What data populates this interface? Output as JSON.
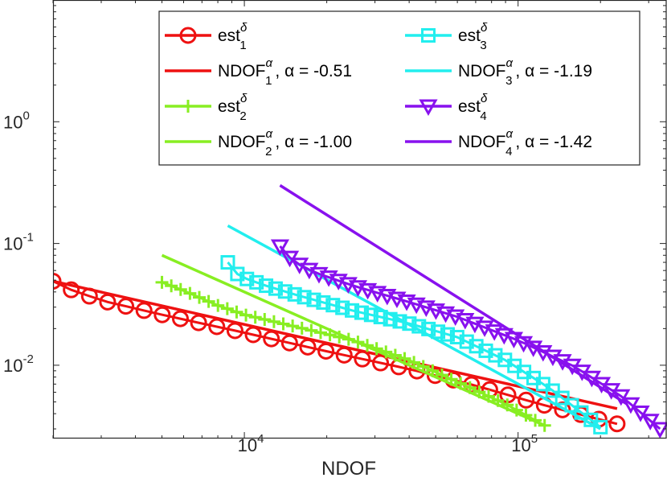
{
  "chart_data": {
    "type": "line",
    "xscale": "log",
    "yscale": "log",
    "xlim": [
      2000,
      350000
    ],
    "ylim": [
      0.0025,
      10
    ],
    "xlabel": "NDOF",
    "ylabel": "",
    "x_ticks": [
      {
        "value": 10000,
        "base": "10",
        "exp": "4"
      },
      {
        "value": 100000,
        "base": "10",
        "exp": "5"
      }
    ],
    "y_ticks": [
      {
        "value": 1,
        "base": "10",
        "exp": "0"
      },
      {
        "value": 0.1,
        "base": "10",
        "exp": "-1"
      },
      {
        "value": 0.01,
        "base": "10",
        "exp": "-2"
      }
    ],
    "legend_position": "top",
    "colors": {
      "s1": "#ee1111",
      "s2": "#88ee22",
      "s3": "#22eeee",
      "s4": "#8811ee",
      "axis": "#262626"
    },
    "legend": [
      {
        "name": "est",
        "sup": "δ",
        "sub": "1",
        "suffix": "",
        "color": "#ee1111",
        "marker": "circle"
      },
      {
        "name": "est",
        "sup": "δ",
        "sub": "3",
        "suffix": "",
        "color": "#22eeee",
        "marker": "square"
      },
      {
        "name": "NDOF",
        "sup": "α",
        "sub": "1",
        "suffix": ",  α = -0.51",
        "color": "#ee1111",
        "marker": "line"
      },
      {
        "name": "NDOF",
        "sup": "α",
        "sub": "3",
        "suffix": ",  α = -1.19",
        "color": "#22eeee",
        "marker": "line"
      },
      {
        "name": "est",
        "sup": "δ",
        "sub": "2",
        "suffix": "",
        "color": "#88ee22",
        "marker": "plus"
      },
      {
        "name": "est",
        "sup": "δ",
        "sub": "4",
        "suffix": "",
        "color": "#8811ee",
        "marker": "triangle"
      },
      {
        "name": "NDOF",
        "sup": "α",
        "sub": "2",
        "suffix": ",  α = -1.00",
        "color": "#88ee22",
        "marker": "line"
      },
      {
        "name": "NDOF",
        "sup": "α",
        "sub": "4",
        "suffix": ",  α = -1.42",
        "color": "#8811ee",
        "marker": "line"
      }
    ],
    "series": [
      {
        "name": "est_1",
        "color": "#ee1111",
        "marker": "circle",
        "n": 32,
        "x_start": 2000,
        "x_end": 230000,
        "y_points": [
          [
            2000,
            0.049
          ],
          [
            2100,
            0.044
          ],
          [
            2400,
            0.041
          ],
          [
            3000,
            0.034
          ],
          [
            5000,
            0.026
          ],
          [
            10000,
            0.0185
          ],
          [
            20000,
            0.013
          ],
          [
            40000,
            0.0093
          ],
          [
            70000,
            0.0068
          ],
          [
            120000,
            0.0048
          ],
          [
            230000,
            0.0033
          ]
        ]
      },
      {
        "name": "NDOF_1 fit",
        "color": "#ee1111",
        "marker": "none",
        "x": [
          2000,
          230000
        ],
        "y": [
          0.049,
          0.0044
        ]
      },
      {
        "name": "est_2",
        "color": "#88ee22",
        "marker": "plus",
        "n": 42,
        "x_start": 5000,
        "x_end": 125000,
        "y_points": [
          [
            5000,
            0.048
          ],
          [
            6000,
            0.041
          ],
          [
            8000,
            0.031
          ],
          [
            10000,
            0.026
          ],
          [
            15000,
            0.021
          ],
          [
            25000,
            0.016
          ],
          [
            40000,
            0.011
          ],
          [
            60000,
            0.0073
          ],
          [
            90000,
            0.0048
          ],
          [
            125000,
            0.0032
          ]
        ]
      },
      {
        "name": "NDOF_2 fit",
        "color": "#88ee22",
        "marker": "none",
        "x": [
          5000,
          125000
        ],
        "y": [
          0.08,
          0.0032
        ]
      },
      {
        "name": "est_3",
        "color": "#22eeee",
        "marker": "square",
        "n": 40,
        "x_start": 8700,
        "x_end": 200000,
        "y_points": [
          [
            8700,
            0.07
          ],
          [
            9200,
            0.058
          ],
          [
            10000,
            0.052
          ],
          [
            12000,
            0.045
          ],
          [
            16000,
            0.037
          ],
          [
            25000,
            0.028
          ],
          [
            40000,
            0.022
          ],
          [
            60000,
            0.017
          ],
          [
            90000,
            0.011
          ],
          [
            130000,
            0.0065
          ],
          [
            200000,
            0.0031
          ]
        ]
      },
      {
        "name": "NDOF_3 fit",
        "color": "#22eeee",
        "marker": "none",
        "x": [
          8700,
          200000
        ],
        "y": [
          0.14,
          0.003
        ]
      },
      {
        "name": "est_4",
        "color": "#8811ee",
        "marker": "triangle",
        "n": 40,
        "x_start": 13500,
        "x_end": 330000,
        "y_points": [
          [
            13500,
            0.095
          ],
          [
            15000,
            0.072
          ],
          [
            18000,
            0.058
          ],
          [
            25000,
            0.045
          ],
          [
            40000,
            0.033
          ],
          [
            60000,
            0.025
          ],
          [
            100000,
            0.016
          ],
          [
            160000,
            0.0098
          ],
          [
            240000,
            0.0055
          ],
          [
            330000,
            0.003
          ]
        ]
      },
      {
        "name": "NDOF_4 fit",
        "color": "#8811ee",
        "marker": "none",
        "x": [
          13500,
          250000
        ],
        "y": [
          0.3,
          0.0048
        ]
      }
    ]
  }
}
